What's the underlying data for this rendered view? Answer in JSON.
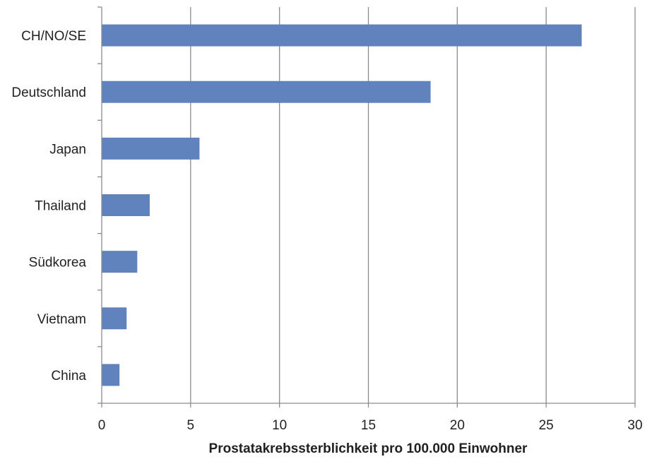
{
  "chart_data": {
    "type": "bar",
    "orientation": "horizontal",
    "categories": [
      "CH/NO/SE",
      "Deutschland",
      "Japan",
      "Thailand",
      "Südkorea",
      "Vietnam",
      "China"
    ],
    "values": [
      27,
      18.5,
      5.5,
      2.7,
      2.0,
      1.4,
      1.0
    ],
    "xlabel": "Prostatakrebssterblichkeit pro 100.000 Einwohner",
    "ylabel": "",
    "xlim": [
      0,
      30
    ],
    "xticks": [
      0,
      5,
      10,
      15,
      20,
      25,
      30
    ],
    "xtick_labels": [
      "0",
      "5",
      "10",
      "15",
      "20",
      "25",
      "30"
    ],
    "grid": "vertical",
    "legend": "none",
    "colors": {
      "bar": "#6183bd",
      "grid": "#8c8c8c",
      "text": "#231f20"
    }
  }
}
